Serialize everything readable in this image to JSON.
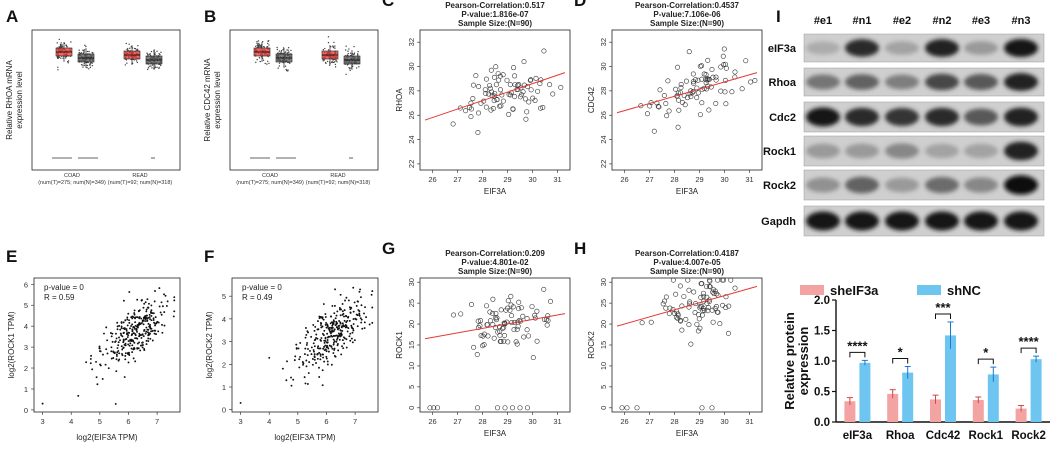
{
  "panels": {
    "A": {
      "label": "A",
      "ylabel": [
        "Relative RHOA mRNA",
        "expression level"
      ],
      "groups": [
        {
          "name": "COAD",
          "sub": "(num(T)=275; num(N)=349)"
        },
        {
          "name": "READ",
          "sub": "(num(T)=92; num(N)=318)"
        }
      ]
    },
    "B": {
      "label": "B",
      "ylabel": [
        "Relative CDC42 mRNA",
        "expression level"
      ],
      "groups": [
        {
          "name": "COAD",
          "sub": "(num(T)=275; num(N)=349)"
        },
        {
          "name": "READ",
          "sub": "(num(T)=92; num(N)=318)"
        }
      ]
    },
    "E": {
      "label": "E",
      "pvalue": "p-value = 0",
      "r": "R = 0.59",
      "xlabel": "log2(EIF3A TPM)",
      "ylabel": "log2(ROCK1 TPM)"
    },
    "F": {
      "label": "F",
      "pvalue": "p-value = 0",
      "r": "R = 0.49",
      "xlabel": "log2(EIF3A TPM)",
      "ylabel": "log2(ROCK2 TPM)"
    },
    "I": {
      "label": "I"
    }
  },
  "chart_data": [
    {
      "id": "C",
      "type": "scatter",
      "label": "C",
      "title": [
        "Pearson-Correlation:0.517",
        "P-value:1.816e-07",
        "Sample Size:(N=90)"
      ],
      "xlabel": "EIF3A",
      "ylabel": "RHOA",
      "xlim": [
        25.5,
        31.5
      ],
      "ylim": [
        21.5,
        33
      ],
      "xticks": [
        26,
        27,
        28,
        29,
        30,
        31
      ],
      "yticks": [
        22,
        24,
        26,
        28,
        30,
        32
      ],
      "fit": [
        [
          25.7,
          25.6
        ],
        [
          31.3,
          29.5
        ]
      ]
    },
    {
      "id": "D",
      "type": "scatter",
      "label": "D",
      "title": [
        "Pearson-Correlation:0.4537",
        "P-value:7.106e-06",
        "Sample Size:(N=90)"
      ],
      "xlabel": "EIF3A",
      "ylabel": "CDC42",
      "xlim": [
        25.5,
        31.5
      ],
      "ylim": [
        21.5,
        33
      ],
      "xticks": [
        26,
        27,
        28,
        29,
        30,
        31
      ],
      "yticks": [
        22,
        24,
        26,
        28,
        30,
        32
      ],
      "fit": [
        [
          25.7,
          26.2
        ],
        [
          31.3,
          29.5
        ]
      ]
    },
    {
      "id": "G",
      "type": "scatter",
      "label": "G",
      "title": [
        "Pearson-Correlation:0.209",
        "P-value:4.801e-02",
        "Sample Size:(N=90)"
      ],
      "xlabel": "EIF3A",
      "ylabel": "ROCK1",
      "xlim": [
        25.5,
        31.5
      ],
      "ylim": [
        -1,
        31
      ],
      "xticks": [
        26,
        27,
        28,
        29,
        30,
        31
      ],
      "yticks": [
        0,
        5,
        10,
        15,
        20,
        25,
        30
      ],
      "fit": [
        [
          25.7,
          16.5
        ],
        [
          31.3,
          22.5
        ]
      ]
    },
    {
      "id": "H",
      "type": "scatter",
      "label": "H",
      "title": [
        "Pearson-Correlation:0.4187",
        "P-value:4.007e-05",
        "Sample Size:(N=90)"
      ],
      "xlabel": "EIF3A",
      "ylabel": "ROCK2",
      "xlim": [
        25.5,
        31.5
      ],
      "ylim": [
        -1,
        31
      ],
      "xticks": [
        26,
        27,
        28,
        29,
        30,
        31
      ],
      "yticks": [
        0,
        5,
        10,
        15,
        20,
        25,
        30
      ],
      "fit": [
        [
          25.7,
          19.5
        ],
        [
          31.3,
          29
        ]
      ]
    },
    {
      "id": "E",
      "type": "scatter",
      "xlim": [
        2.7,
        7.8
      ],
      "ylim": [
        -0.1,
        6.3
      ],
      "xticks": [
        3,
        4,
        5,
        6,
        7
      ],
      "yticks": [
        0,
        1,
        2,
        3,
        4,
        5,
        6
      ]
    },
    {
      "id": "F",
      "type": "scatter",
      "xlim": [
        2.7,
        7.8
      ],
      "ylim": [
        -0.1,
        5.8
      ],
      "xticks": [
        3,
        4,
        5,
        6,
        7
      ],
      "yticks": [
        0,
        1,
        2,
        3,
        4,
        5
      ]
    },
    {
      "id": "I",
      "type": "bar",
      "categories": [
        "eIF3a",
        "Rhoa",
        "Cdc42",
        "Rock1",
        "Rock2"
      ],
      "series": [
        {
          "name": "sheIF3a",
          "color": "#f4a3a3",
          "values": [
            0.34,
            0.46,
            0.37,
            0.36,
            0.22
          ],
          "errors": [
            0.06,
            0.07,
            0.07,
            0.05,
            0.05
          ]
        },
        {
          "name": "shNC",
          "color": "#6ec6f0",
          "values": [
            0.97,
            0.81,
            1.42,
            0.78,
            1.03
          ],
          "errors": [
            0.04,
            0.1,
            0.22,
            0.12,
            0.05
          ]
        }
      ],
      "significance": [
        "****",
        "*",
        "***",
        "*",
        "****"
      ],
      "ylabel": [
        "Relative protein",
        "expression"
      ],
      "ylim": [
        0,
        2.0
      ],
      "yticks": [
        "0.0",
        "0.5",
        "1.0",
        "1.5",
        "2.0"
      ]
    }
  ],
  "western_blot": {
    "lanes": [
      "#e1",
      "#n1",
      "#e2",
      "#n2",
      "#e3",
      "#n3"
    ],
    "rows": [
      {
        "name": "eIF3a",
        "intensity": [
          0.15,
          0.85,
          0.2,
          0.9,
          0.25,
          0.95
        ]
      },
      {
        "name": "Rhoa",
        "intensity": [
          0.45,
          0.55,
          0.4,
          0.7,
          0.6,
          0.9
        ]
      },
      {
        "name": "Cdc2",
        "intensity": [
          0.95,
          0.85,
          0.8,
          0.85,
          0.6,
          0.9
        ]
      },
      {
        "name": "Rock1",
        "intensity": [
          0.25,
          0.25,
          0.35,
          0.2,
          0.2,
          0.9
        ]
      },
      {
        "name": "Rock2",
        "intensity": [
          0.3,
          0.55,
          0.25,
          0.5,
          0.35,
          1.0
        ]
      },
      {
        "name": "Gapdh",
        "intensity": [
          0.95,
          0.95,
          0.95,
          0.95,
          0.95,
          0.95
        ]
      }
    ]
  }
}
